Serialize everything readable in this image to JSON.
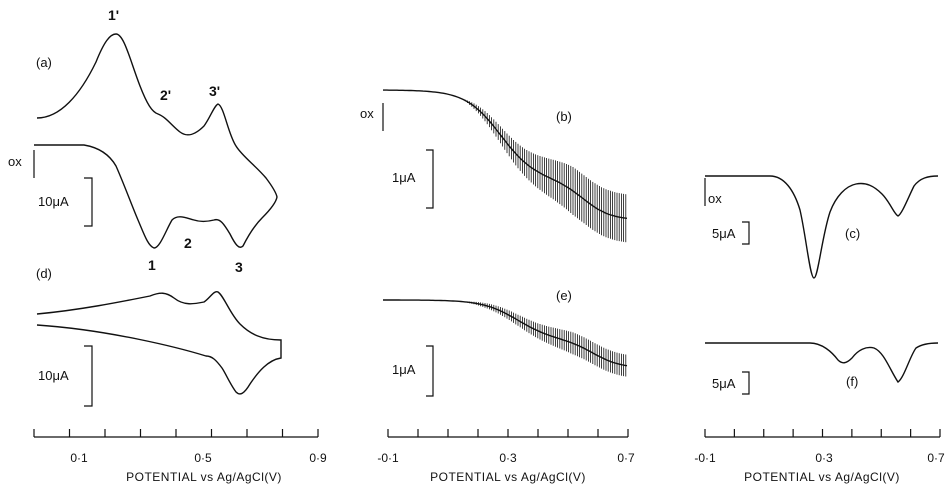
{
  "chart_data": [
    {
      "type": "line",
      "panels": [
        "a",
        "d"
      ],
      "xlabel": "POTENTIAL vs Ag/AgCl(V)",
      "xticks": [
        "0·1",
        "0·5",
        "0·9"
      ],
      "xlim": [
        -0.1,
        0.9
      ],
      "panel_labels": {
        "a": "(a)",
        "d": "(d)"
      },
      "ox_label": "ox",
      "scale_bars": {
        "a": "10μA",
        "d": "10μA"
      },
      "peak_labels": {
        "ox": [
          "1'",
          "2'",
          "3'"
        ],
        "red": [
          "1",
          "2",
          "3"
        ]
      },
      "peaks": {
        "ox": [
          0.2,
          0.38,
          0.54
        ],
        "red": [
          0.3,
          0.44,
          0.6
        ]
      }
    },
    {
      "type": "line",
      "panels": [
        "b",
        "e"
      ],
      "xlabel": "POTENTIAL vs Ag/AgCl(V)",
      "xticks": [
        "-0·1",
        "0·3",
        "0·7"
      ],
      "xlim": [
        -0.1,
        0.7
      ],
      "panel_labels": {
        "b": "(b)",
        "e": "(e)"
      },
      "ox_label": "ox",
      "scale_bars": {
        "b": "1μA",
        "e": "1μA"
      }
    },
    {
      "type": "line",
      "panels": [
        "c",
        "f"
      ],
      "xlabel": "POTENTIAL vs Ag/AgCl(V)",
      "xticks": [
        "-0·1",
        "0·3",
        "0·7"
      ],
      "xlim": [
        -0.1,
        0.7
      ],
      "panel_labels": {
        "c": "(c)",
        "f": "(f)"
      },
      "ox_label": "ox",
      "scale_bars": {
        "c": "5μA",
        "f": "5μA"
      },
      "peaks": {
        "c": [
          0.28,
          0.58
        ],
        "f": [
          0.36,
          0.58
        ]
      }
    }
  ]
}
